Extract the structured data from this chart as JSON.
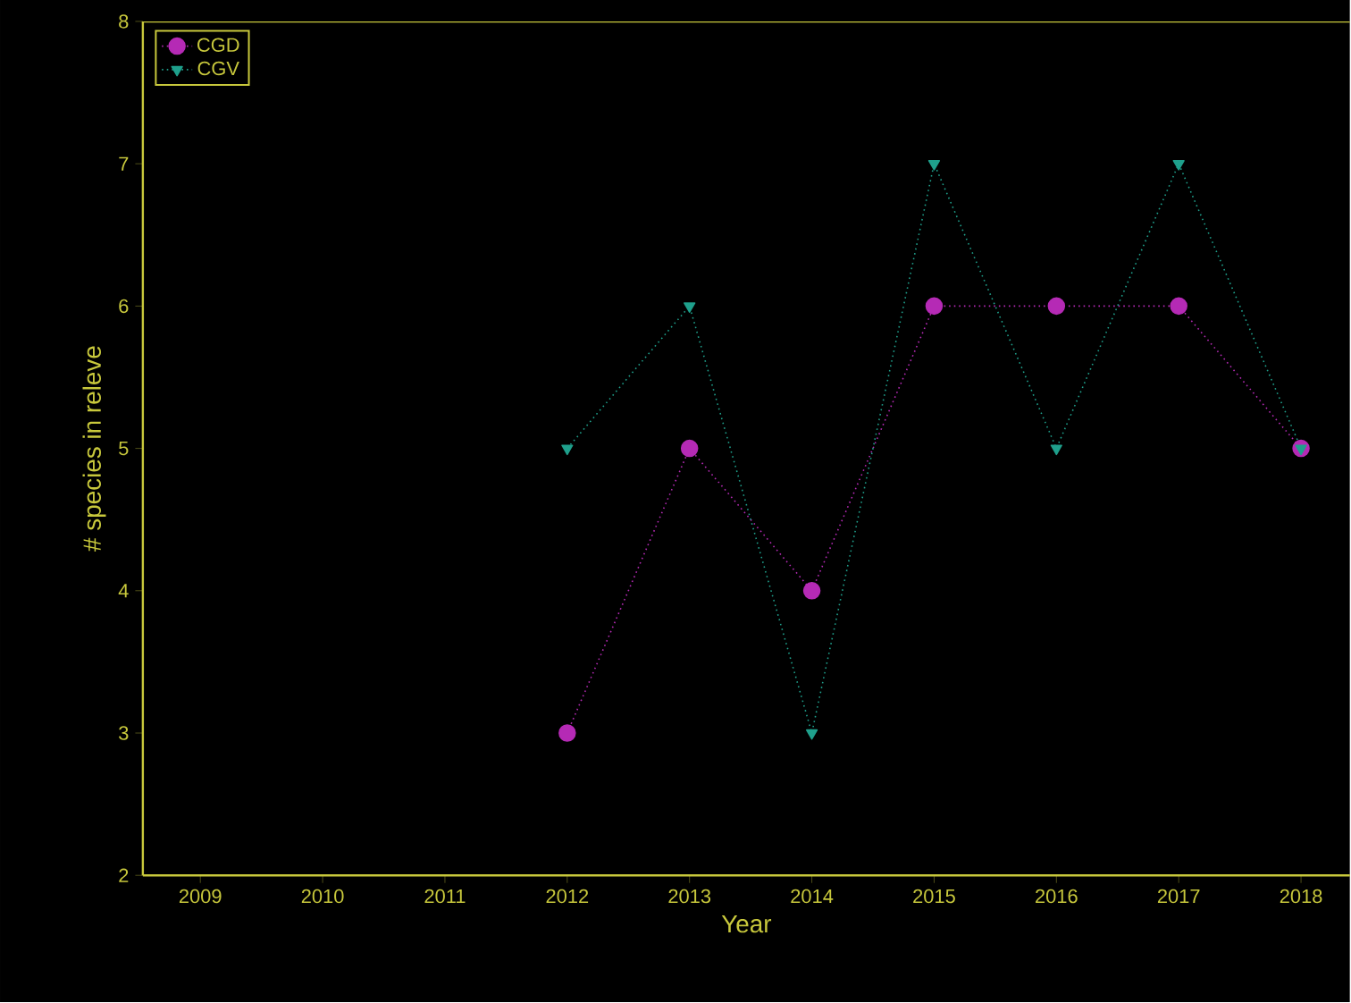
{
  "chart_data": {
    "type": "line",
    "xlabel": "Year",
    "ylabel": "# species in releve",
    "x": [
      2012,
      2013,
      2014,
      2015,
      2016,
      2017,
      2018
    ],
    "series": [
      {
        "name": "CGD",
        "color": "#b52ab5",
        "marker": "circle",
        "values": [
          3,
          5,
          4,
          6,
          6,
          6,
          5
        ]
      },
      {
        "name": "CGV",
        "color": "#1fa08c",
        "marker": "triangle",
        "values": [
          5,
          6,
          3,
          7,
          5,
          7,
          5
        ]
      }
    ],
    "xlim": [
      2008.53,
      2018.4
    ],
    "xticks": [
      2009,
      2010,
      2011,
      2012,
      2013,
      2014,
      2015,
      2016,
      2017,
      2018
    ],
    "ylim": [
      2,
      8
    ],
    "yticks": [
      2,
      3,
      4,
      5,
      6,
      7,
      8
    ],
    "grid": false,
    "legend": "top left",
    "line_style": "dotted"
  }
}
